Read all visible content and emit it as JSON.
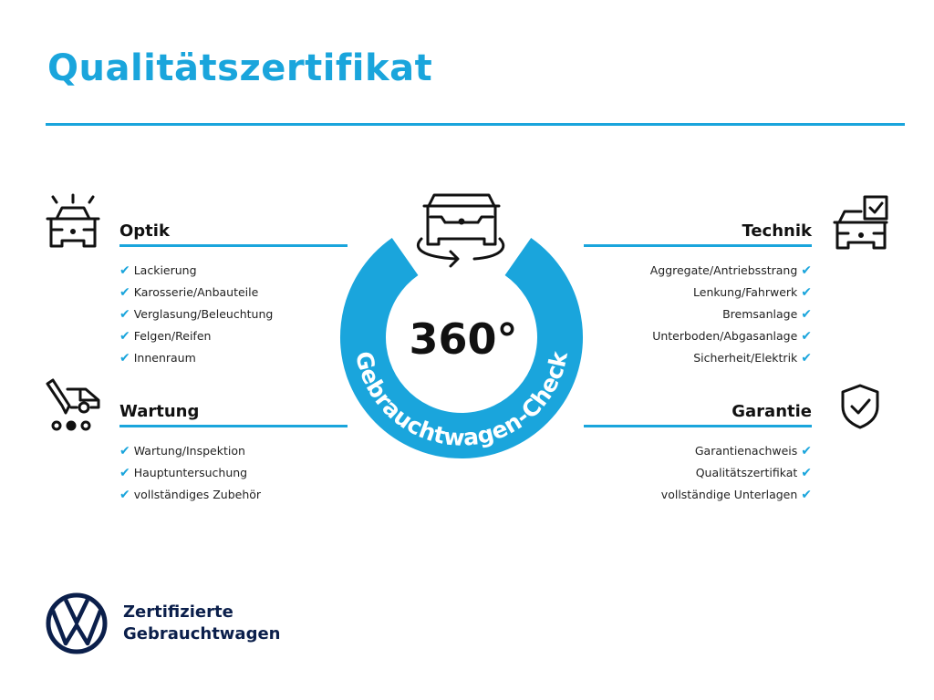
{
  "title": "Qualitätszertifikat",
  "colors": {
    "accent": "#1aa5dc",
    "brand_navy": "#0b1f4b"
  },
  "center": {
    "big_text": "360°",
    "ring_text": "Gebrauchtwagen-Check",
    "icon": "car-rotate-icon"
  },
  "sections": {
    "optik": {
      "heading": "Optik",
      "icon": "car-lights-icon",
      "items": [
        "Lackierung",
        "Karosserie/Anbauteile",
        "Verglasung/Beleuchtung",
        "Felgen/Reifen",
        "Innenraum"
      ]
    },
    "wartung": {
      "heading": "Wartung",
      "icon": "service-van-icon",
      "items": [
        "Wartung/Inspektion",
        "Hauptuntersuchung",
        "vollständiges Zubehör"
      ]
    },
    "technik": {
      "heading": "Technik",
      "icon": "car-checklist-icon",
      "items": [
        "Aggregate/Antriebsstrang",
        "Lenkung/Fahrwerk",
        "Bremsanlage",
        "Unterboden/Abgasanlage",
        "Sicherheit/Elektrik"
      ]
    },
    "garantie": {
      "heading": "Garantie",
      "icon": "shield-check-icon",
      "items": [
        "Garantienachweis",
        "Qualitätszertifikat",
        "vollständige Unterlagen"
      ]
    }
  },
  "check_glyph": "✔",
  "footer": {
    "line1": "Zertifizierte",
    "line2": "Gebrauchtwagen",
    "logo": "vw-logo"
  }
}
